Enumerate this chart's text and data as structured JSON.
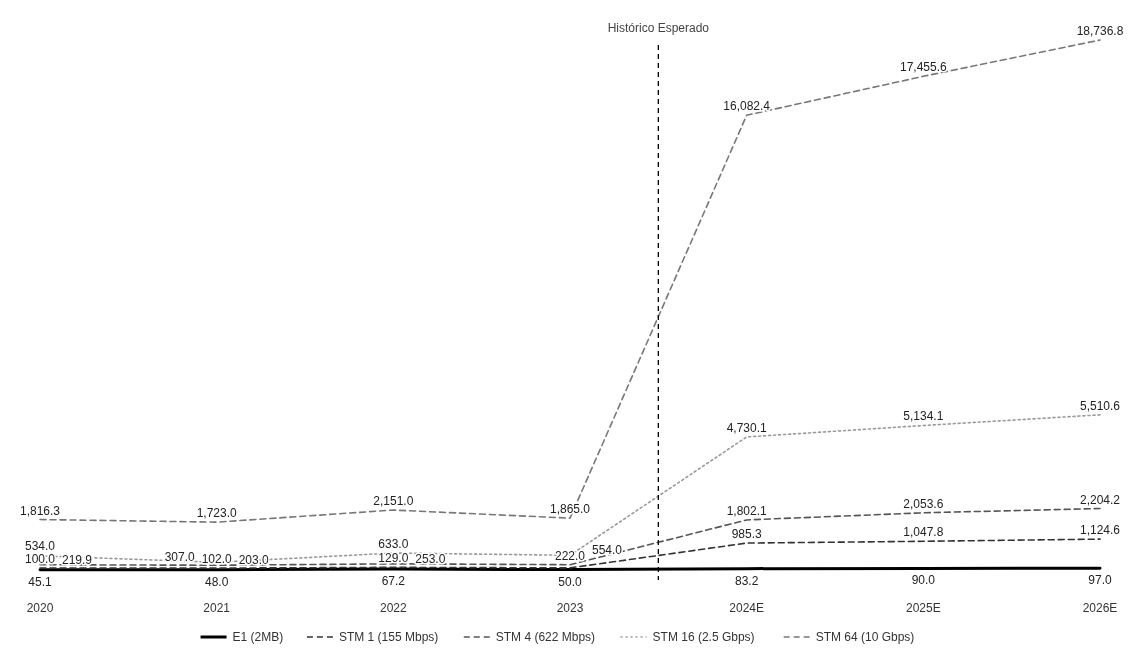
{
  "chart_data": {
    "type": "line",
    "categories": [
      "2020",
      "2021",
      "2022",
      "2023",
      "2024E",
      "2025E",
      "2026E"
    ],
    "series": [
      {
        "name": "E1 (2MB)",
        "color": "#000000",
        "line_style": "solid",
        "values": [
          45.1,
          48.0,
          67.2,
          50.0,
          83.2,
          90.0,
          97.0
        ],
        "value_labels": [
          "45.1",
          "48.0",
          "67.2",
          "50.0",
          "83.2",
          "90.0",
          "97.0"
        ]
      },
      {
        "name": "STM 1 (155 Mbps)",
        "color": "#333333",
        "line_style": "dashed",
        "values": [
          100.0,
          102.0,
          129.0,
          110,
          985.3,
          1047.8,
          1124.6
        ],
        "value_labels": [
          "100.0",
          "102.0",
          "129.0",
          null,
          "985.3",
          "1,047.8",
          "1,124.6"
        ]
      },
      {
        "name": "STM 4 (622 Mbps)",
        "color": "#555555",
        "line_style": "dashed",
        "values": [
          219.9,
          203.0,
          253.0,
          222.0,
          1802.1,
          2053.6,
          2204.2
        ],
        "value_labels": [
          "219.9",
          "203.0",
          "253.0",
          "222.0",
          "1,802.1",
          "2,053.6",
          "2,204.2"
        ]
      },
      {
        "name": "STM 16 (2.5 Gbps)",
        "color": "#999999",
        "line_style": "dotted",
        "values": [
          534.0,
          307.0,
          633.0,
          554.0,
          4730.1,
          5134.1,
          5510.6
        ],
        "value_labels": [
          "534.0",
          "307.0",
          "633.0",
          "554.0",
          "4,730.1",
          "5,134.1",
          "5,510.6"
        ]
      },
      {
        "name": "STM 64 (10 Gbps)",
        "color": "#777777",
        "line_style": "dashed",
        "values": [
          1816.3,
          1723.0,
          2151.0,
          1865.0,
          16082.4,
          17455.6,
          18736.8
        ],
        "value_labels": [
          "1,816.3",
          "1,723.0",
          "2,151.0",
          "1,865.0",
          "16,082.4",
          "17,455.6",
          "18,736.8"
        ]
      }
    ],
    "annotations": [
      "Histórico Esperado"
    ],
    "legend": "bottom"
  }
}
